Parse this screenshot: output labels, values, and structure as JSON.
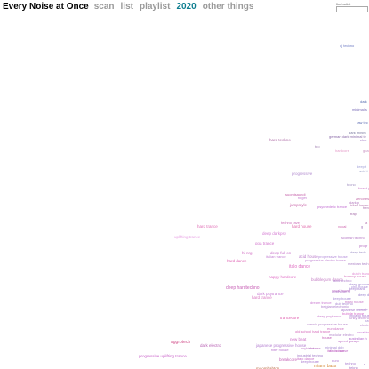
{
  "header": {
    "title": "Every Noise at Once",
    "nav": [
      {
        "label": "scan",
        "active": false
      },
      {
        "label": "list",
        "active": false
      },
      {
        "label": "playlist",
        "active": false
      },
      {
        "label": "2020",
        "active": true
      },
      {
        "label": "other things",
        "active": false
      }
    ]
  },
  "search": {
    "label": "find artist",
    "value": ""
  },
  "genres": [
    {
      "name": "dj techno",
      "color": "#6f7cc4"
    },
    {
      "name": "dark",
      "color": "#5a6fb0"
    },
    {
      "name": "minimal s",
      "color": "#7a6cb7"
    },
    {
      "name": "raw tec",
      "color": "#5e6db3"
    },
    {
      "name": "dark minim",
      "color": "#7a7aa0"
    },
    {
      "name": "german dark minimal te",
      "color": "#8a6aa8"
    },
    {
      "name": "elec",
      "color": "#9a6fc0"
    },
    {
      "name": "hard techno",
      "color": "#b06fa8"
    },
    {
      "name": "teo",
      "color": "#a07fb0"
    },
    {
      "name": "hardcore",
      "color": "#e59ac8"
    },
    {
      "name": "goa psytrance",
      "color": "#c890c0"
    },
    {
      "name": "deep t",
      "color": "#9f9fd8"
    },
    {
      "name": "acid t",
      "color": "#9aa0c8"
    },
    {
      "name": "progressive",
      "color": "#b48fd0"
    },
    {
      "name": "tecno",
      "color": "#a08fc0"
    },
    {
      "name": "forest psy",
      "color": "#c97cc8"
    },
    {
      "name": "suomisaundi",
      "color": "#c45fa8"
    },
    {
      "name": "fidget",
      "color": "#c57bd0"
    },
    {
      "name": "zenonesque",
      "color": "#c16ca8"
    },
    {
      "name": "psychedelic trance",
      "color": "#c26fd2"
    },
    {
      "name": "dark p",
      "color": "#b47cc0"
    },
    {
      "name": "tribal house",
      "color": "#b06aa5"
    },
    {
      "name": "frenc",
      "color": "#b078b0"
    },
    {
      "name": "trap",
      "color": "#a56faa"
    },
    {
      "name": "jumpstyle",
      "color": "#c65ea4"
    },
    {
      "name": "a",
      "color": "#b37ab0"
    },
    {
      "name": "g",
      "color": "#a57dbd"
    },
    {
      "name": "hard trance",
      "color": "#e06cb4"
    },
    {
      "name": "techno rave",
      "color": "#cc6fb8"
    },
    {
      "name": "vocal",
      "color": "#cc5faa"
    },
    {
      "name": "hard house",
      "color": "#e16aaa"
    },
    {
      "name": "deep darkpsy",
      "color": "#d47bd2"
    },
    {
      "name": "uplifting trance",
      "color": "#e8a2e4"
    },
    {
      "name": "scottish techno",
      "color": "#b67bc5"
    },
    {
      "name": "progr",
      "color": "#b56fc1"
    },
    {
      "name": "goa trance",
      "color": "#d274cc"
    },
    {
      "name": "deep tech",
      "color": "#9a8ec5"
    },
    {
      "name": "hi-nrg",
      "color": "#d068c0"
    },
    {
      "name": "deep full on",
      "color": "#c66ec7"
    },
    {
      "name": "italian trance",
      "color": "#c37fd2"
    },
    {
      "name": "acid house",
      "color": "#b97ac9"
    },
    {
      "name": "progressive house",
      "color": "#b38ad9"
    },
    {
      "name": "progressive electro house",
      "color": "#c389d3"
    },
    {
      "name": "hard dance",
      "color": "#df62b3"
    },
    {
      "name": "mexican tech",
      "color": "#ab80c5"
    },
    {
      "name": "italo dance",
      "color": "#de6cc0"
    },
    {
      "name": "dutch trance",
      "color": "#e089d4"
    },
    {
      "name": "bouncy house",
      "color": "#d46fba"
    },
    {
      "name": "bubblegum dance",
      "color": "#c57fc5"
    },
    {
      "name": "happy hardcore",
      "color": "#e06bc4"
    },
    {
      "name": "acid techno",
      "color": "#b183ce"
    },
    {
      "name": "deep groove",
      "color": "#9f83cc"
    },
    {
      "name": "chill house",
      "color": "#a98ad6"
    },
    {
      "name": "deep hard",
      "color": "#9f7ad0"
    },
    {
      "name": "australian h",
      "color": "#b07fcc"
    },
    {
      "name": "deep deep",
      "color": "#9b83cd"
    },
    {
      "name": "vocal house",
      "color": "#b66bc2"
    },
    {
      "name": "chicago house",
      "color": "#a876cb"
    },
    {
      "name": "deep hardtechno",
      "color": "#c75fb5"
    },
    {
      "name": "dark psytrance",
      "color": "#c67ad2"
    },
    {
      "name": "hard trance",
      "color": "#d874bf"
    },
    {
      "name": "dream trance",
      "color": "#c978d0"
    },
    {
      "name": "tribal house",
      "color": "#c97bc8"
    },
    {
      "name": "dub techno",
      "color": "#a886d0"
    },
    {
      "name": "belgian electronic",
      "color": "#b081cd"
    },
    {
      "name": "deep house",
      "color": "#a489d5"
    },
    {
      "name": "japanese techno",
      "color": "#a97dcc"
    },
    {
      "name": "nordic house",
      "color": "#b38ad4"
    },
    {
      "name": "bubble trance",
      "color": "#d56bc9"
    },
    {
      "name": "deep psytrance",
      "color": "#c978cc"
    },
    {
      "name": "funky tech house",
      "color": "#b680cc"
    },
    {
      "name": "bass",
      "color": "#a889d0"
    },
    {
      "name": "trancecore",
      "color": "#e062b0"
    },
    {
      "name": "classic progressive house",
      "color": "#b483c9"
    },
    {
      "name": "eurodance",
      "color": "#cf73c3"
    },
    {
      "name": "electropop",
      "color": "#b27ec7"
    },
    {
      "name": "old school hard trance",
      "color": "#d56aba"
    },
    {
      "name": "vocal trance",
      "color": "#c06bcf"
    },
    {
      "name": "modular electro",
      "color": "#b68ccd"
    },
    {
      "name": "new beat",
      "color": "#c96ac3"
    },
    {
      "name": "house",
      "color": "#c260b6"
    },
    {
      "name": "australian h",
      "color": "#b46dcf"
    },
    {
      "name": "speed garage",
      "color": "#b865c0"
    },
    {
      "name": "aggrotech",
      "color": "#d14e8a"
    },
    {
      "name": "dark electro",
      "color": "#b55bb0"
    },
    {
      "name": "japanese progressive house",
      "color": "#b47fd1"
    },
    {
      "name": "psybient",
      "color": "#c07fc9"
    },
    {
      "name": "minimal dub",
      "color": "#a58ad3"
    },
    {
      "name": "italo house",
      "color": "#c86fc4"
    },
    {
      "name": "filter house",
      "color": "#bb7ad0"
    },
    {
      "name": "skweee",
      "color": "#b86cc0"
    },
    {
      "name": "disco house",
      "color": "#c16ec7"
    },
    {
      "name": "progressive uplifting trance",
      "color": "#c85fc8"
    },
    {
      "name": "industrial techno",
      "color": "#a17ac8"
    },
    {
      "name": "italo dance",
      "color": "#c86bc7"
    },
    {
      "name": "deep house",
      "color": "#a97ad0"
    },
    {
      "name": "euro",
      "color": "#b27ad0"
    },
    {
      "name": "techno",
      "color": "#ab7fd0"
    },
    {
      "name": "miami bass",
      "color": "#d48a3a"
    },
    {
      "name": "moombahton",
      "color": "#b86a40"
    },
    {
      "name": "tekno",
      "color": "#a57ac4"
    },
    {
      "name": "r",
      "color": "#a779c2"
    },
    {
      "name": "breakcore",
      "color": "#c35fb5"
    }
  ]
}
